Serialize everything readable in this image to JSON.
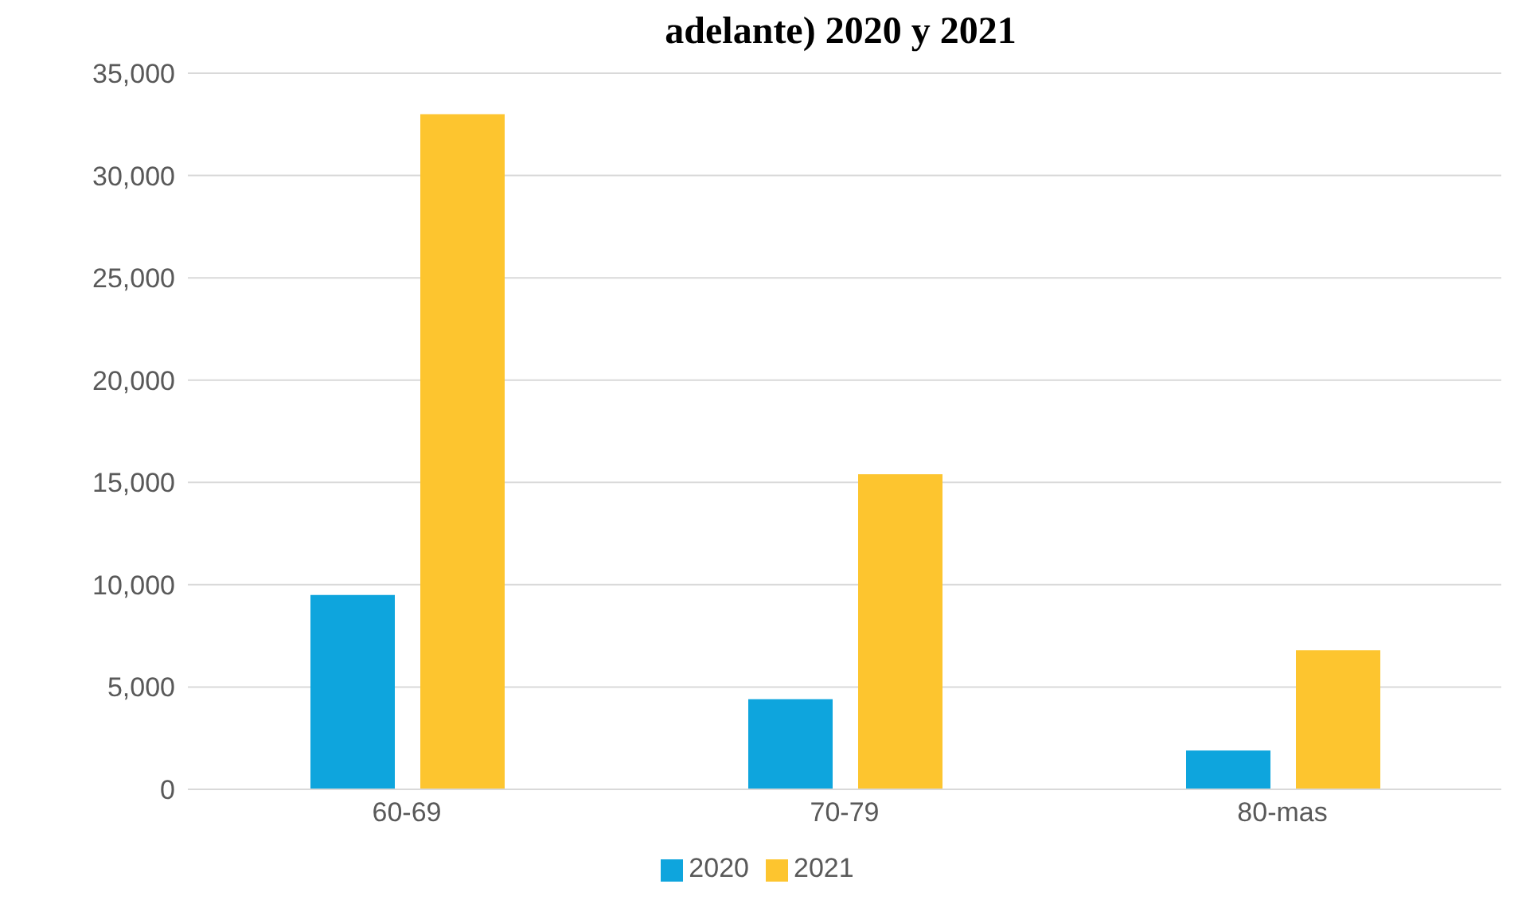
{
  "chart_data": {
    "type": "bar",
    "title": "adelante) 2020 y 2021",
    "categories": [
      "60-69",
      "70-79",
      "80-mas"
    ],
    "series": [
      {
        "name": "2020",
        "color": "#0ea5dd",
        "values": [
          9500,
          4400,
          1900
        ]
      },
      {
        "name": "2021",
        "color": "#fdc52f",
        "values": [
          33000,
          15400,
          6800
        ]
      }
    ],
    "ylim": [
      0,
      35000
    ],
    "yticks": [
      {
        "value": 0,
        "label": "0"
      },
      {
        "value": 5000,
        "label": "5,000"
      },
      {
        "value": 10000,
        "label": "10,000"
      },
      {
        "value": 15000,
        "label": "15,000"
      },
      {
        "value": 20000,
        "label": "20,000"
      },
      {
        "value": 25000,
        "label": "25,000"
      },
      {
        "value": 30000,
        "label": "30,000"
      },
      {
        "value": 35000,
        "label": "35,000"
      }
    ],
    "grid": "y",
    "legend": "bottom"
  }
}
